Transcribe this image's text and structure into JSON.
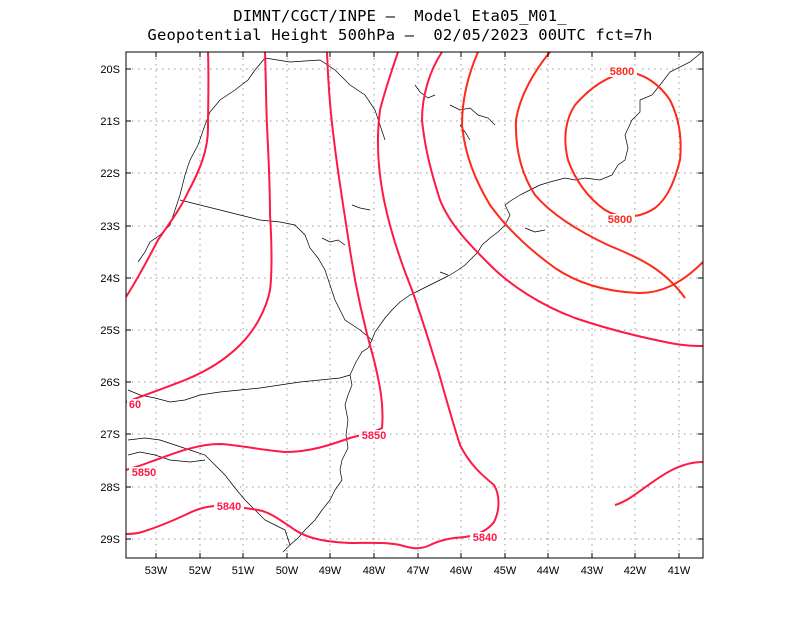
{
  "header": {
    "line1": "DIMNT/CGCT/INPE –  Model Eta05_M01_",
    "line2": "Geopotential Height 500hPa –  02/05/2023 00UTC fct=7h"
  },
  "axes": {
    "lat_labels": [
      "20S",
      "21S",
      "22S",
      "23S",
      "24S",
      "25S",
      "26S",
      "27S",
      "28S",
      "29S"
    ],
    "lon_labels": [
      "53W",
      "52W",
      "51W",
      "50W",
      "49W",
      "48W",
      "47W",
      "46W",
      "45W",
      "44W",
      "43W",
      "42W",
      "41W"
    ]
  },
  "colors": {
    "contour": "#ff1a45",
    "contour_alt": "#ff2a1a",
    "coast": "#000000",
    "grid": "#9a9a9a"
  },
  "contour_labels": [
    {
      "id": "l5800a",
      "text": "5800"
    },
    {
      "id": "l5800b",
      "text": "5800"
    },
    {
      "id": "l5850a",
      "text": "5850"
    },
    {
      "id": "l5850b",
      "text": "5850"
    },
    {
      "id": "l5840a",
      "text": "5840"
    },
    {
      "id": "l5840b",
      "text": "5840"
    },
    {
      "id": "l60",
      "text": "60"
    }
  ],
  "chart_data": {
    "type": "map-contour",
    "variable": "Geopotential Height 500hPa",
    "lon_range": [
      -53.6,
      -40.5
    ],
    "lat_range": [
      -29.4,
      -19.6
    ],
    "contour_levels_labeled": [
      5800,
      5840,
      5850
    ]
  }
}
